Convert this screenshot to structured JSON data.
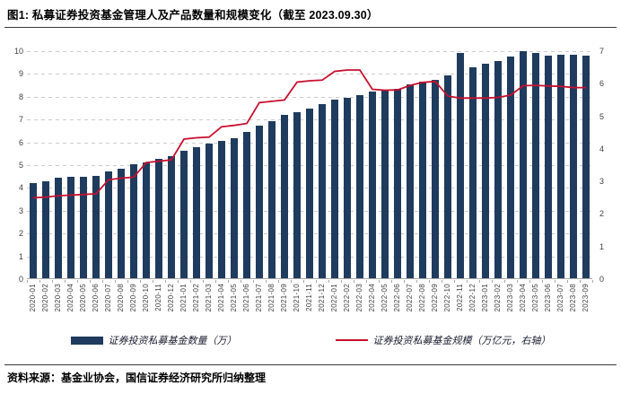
{
  "header": {
    "title": "图1: 私募证券投资基金管理人及产品数量和规模变化（截至 2023.09.30）"
  },
  "footer": {
    "source": "资料来源：基金业协会，国信证券经济研究所归纳整理"
  },
  "colors": {
    "bar": "#1f3b5e",
    "line": "#c8102e",
    "grid": "#cccccc",
    "axis_text": "#404040"
  },
  "chart_data": {
    "type": "bar",
    "title": "私募证券投资基金管理人及产品数量和规模变化（截至 2023.09.30）",
    "xlabel": "",
    "ylabel_left": "数量（万）",
    "ylabel_right": "规模（万亿元）",
    "grid": "dashed-horizontal",
    "legend_position": "bottom",
    "categories": [
      "2020-01",
      "2020-02",
      "2020-03",
      "2020-04",
      "2020-05",
      "2020-06",
      "2020-07",
      "2020-08",
      "2020-09",
      "2020-10",
      "2020-11",
      "2020-12",
      "2021-01",
      "2021-02",
      "2021-03",
      "2021-04",
      "2021-05",
      "2021-06",
      "2021-07",
      "2021-08",
      "2021-09",
      "2021-10",
      "2021-11",
      "2021-12",
      "2022-01",
      "2022-02",
      "2022-03",
      "2022-04",
      "2022-05",
      "2022-06",
      "2022-07",
      "2022-08",
      "2022-09",
      "2022-10",
      "2022-11",
      "2022-12",
      "2023-01",
      "2023-02",
      "2023-03",
      "2023-04",
      "2023-05",
      "2023-06",
      "2023-07",
      "2023-08",
      "2023-09"
    ],
    "series": [
      {
        "name": "证券投资私募基金数量（万）",
        "type": "bar",
        "axis": "left",
        "color": "#1f3b5e",
        "values": [
          4.18,
          4.25,
          4.4,
          4.43,
          4.45,
          4.5,
          4.67,
          4.82,
          5.0,
          5.08,
          5.25,
          5.35,
          5.58,
          5.73,
          5.9,
          6.03,
          6.15,
          6.42,
          6.68,
          6.9,
          7.15,
          7.3,
          7.46,
          7.65,
          7.82,
          7.9,
          8.05,
          8.18,
          8.25,
          8.3,
          8.5,
          8.62,
          8.7,
          8.9,
          9.88,
          9.25,
          9.4,
          9.53,
          9.71,
          9.97,
          9.87,
          9.76,
          9.82,
          9.79,
          9.75
        ]
      },
      {
        "name": "证券投资私募基金规模（万亿元，右轴）",
        "type": "line",
        "axis": "right",
        "color": "#c8102e",
        "values": [
          2.5,
          2.52,
          2.56,
          2.58,
          2.6,
          2.62,
          3.05,
          3.1,
          3.13,
          3.58,
          3.62,
          3.66,
          4.3,
          4.34,
          4.36,
          4.68,
          4.72,
          4.78,
          5.42,
          5.46,
          5.5,
          6.05,
          6.09,
          6.11,
          6.38,
          6.42,
          6.42,
          5.83,
          5.8,
          5.81,
          5.95,
          6.04,
          6.07,
          5.62,
          5.56,
          5.56,
          5.56,
          5.58,
          5.65,
          5.94,
          5.95,
          5.93,
          5.92,
          5.88,
          5.88
        ]
      }
    ],
    "left_axis": {
      "min": 0,
      "max": 10,
      "ticks": [
        0,
        1,
        2,
        3,
        4,
        5,
        6,
        7,
        8,
        9,
        10
      ]
    },
    "right_axis": {
      "min": 0,
      "max": 7,
      "ticks": [
        0,
        1,
        2,
        3,
        4,
        5,
        6,
        7
      ]
    }
  }
}
